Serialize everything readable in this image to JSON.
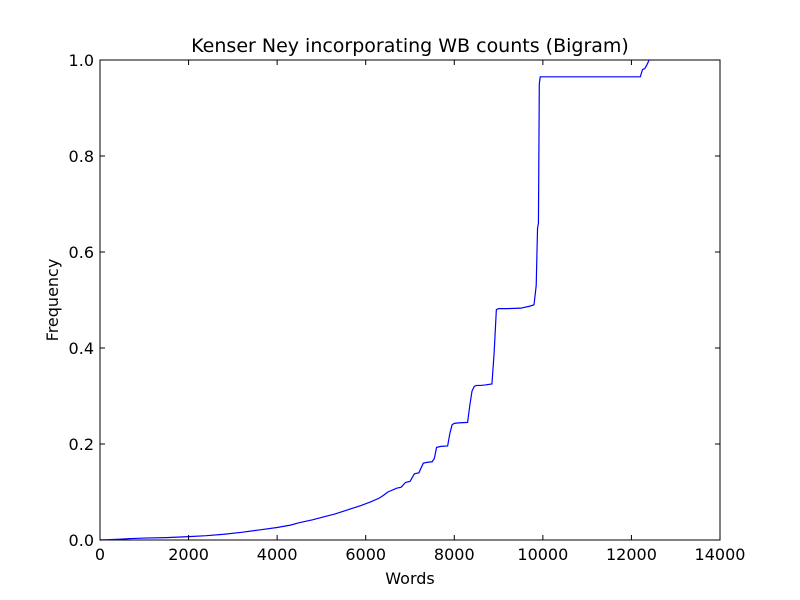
{
  "chart_data": {
    "type": "line",
    "title": "Kenser Ney incorporating WB counts (Bigram)",
    "xlabel": "Words",
    "ylabel": "Frequency",
    "xlim": [
      0,
      14000
    ],
    "ylim": [
      0.0,
      1.0
    ],
    "xticks": [
      0,
      2000,
      4000,
      6000,
      8000,
      10000,
      12000,
      14000
    ],
    "xtick_labels": [
      "0",
      "2000",
      "4000",
      "6000",
      "8000",
      "10000",
      "12000",
      "14000"
    ],
    "yticks": [
      0.0,
      0.2,
      0.4,
      0.6,
      0.8,
      1.0
    ],
    "ytick_labels": [
      "0.0",
      "0.2",
      "0.4",
      "0.6",
      "0.8",
      "1.0"
    ],
    "grid": false,
    "legend": "none",
    "series": [
      {
        "color": "#0000ff",
        "x": [
          0,
          300,
          500,
          700,
          1000,
          1500,
          2000,
          2400,
          2800,
          3200,
          3600,
          4000,
          4300,
          4500,
          4800,
          5000,
          5300,
          5500,
          5700,
          5900,
          6100,
          6300,
          6400,
          6500,
          6700,
          6800,
          6900,
          7000,
          7100,
          7200,
          7300,
          7400,
          7500,
          7550,
          7600,
          7700,
          7850,
          7900,
          7950,
          8000,
          8100,
          8300,
          8350,
          8400,
          8450,
          8500,
          8600,
          8700,
          8850,
          8900,
          8950,
          9000,
          9200,
          9500,
          9700,
          9800,
          9850,
          9880,
          9900,
          9920,
          9940,
          10000,
          10500,
          11000,
          11500,
          12200,
          12250,
          12300,
          12350,
          12400
        ],
        "y": [
          0.0,
          0.001,
          0.002,
          0.003,
          0.004,
          0.005,
          0.007,
          0.009,
          0.012,
          0.016,
          0.021,
          0.026,
          0.031,
          0.036,
          0.042,
          0.047,
          0.054,
          0.06,
          0.066,
          0.072,
          0.079,
          0.087,
          0.093,
          0.1,
          0.108,
          0.11,
          0.12,
          0.122,
          0.138,
          0.14,
          0.16,
          0.162,
          0.163,
          0.17,
          0.193,
          0.195,
          0.196,
          0.222,
          0.24,
          0.243,
          0.244,
          0.245,
          0.28,
          0.31,
          0.32,
          0.322,
          0.322,
          0.323,
          0.325,
          0.39,
          0.48,
          0.482,
          0.482,
          0.483,
          0.487,
          0.49,
          0.53,
          0.65,
          0.66,
          0.95,
          0.965,
          0.965,
          0.965,
          0.965,
          0.965,
          0.965,
          0.98,
          0.982,
          0.99,
          1.0
        ]
      }
    ]
  }
}
